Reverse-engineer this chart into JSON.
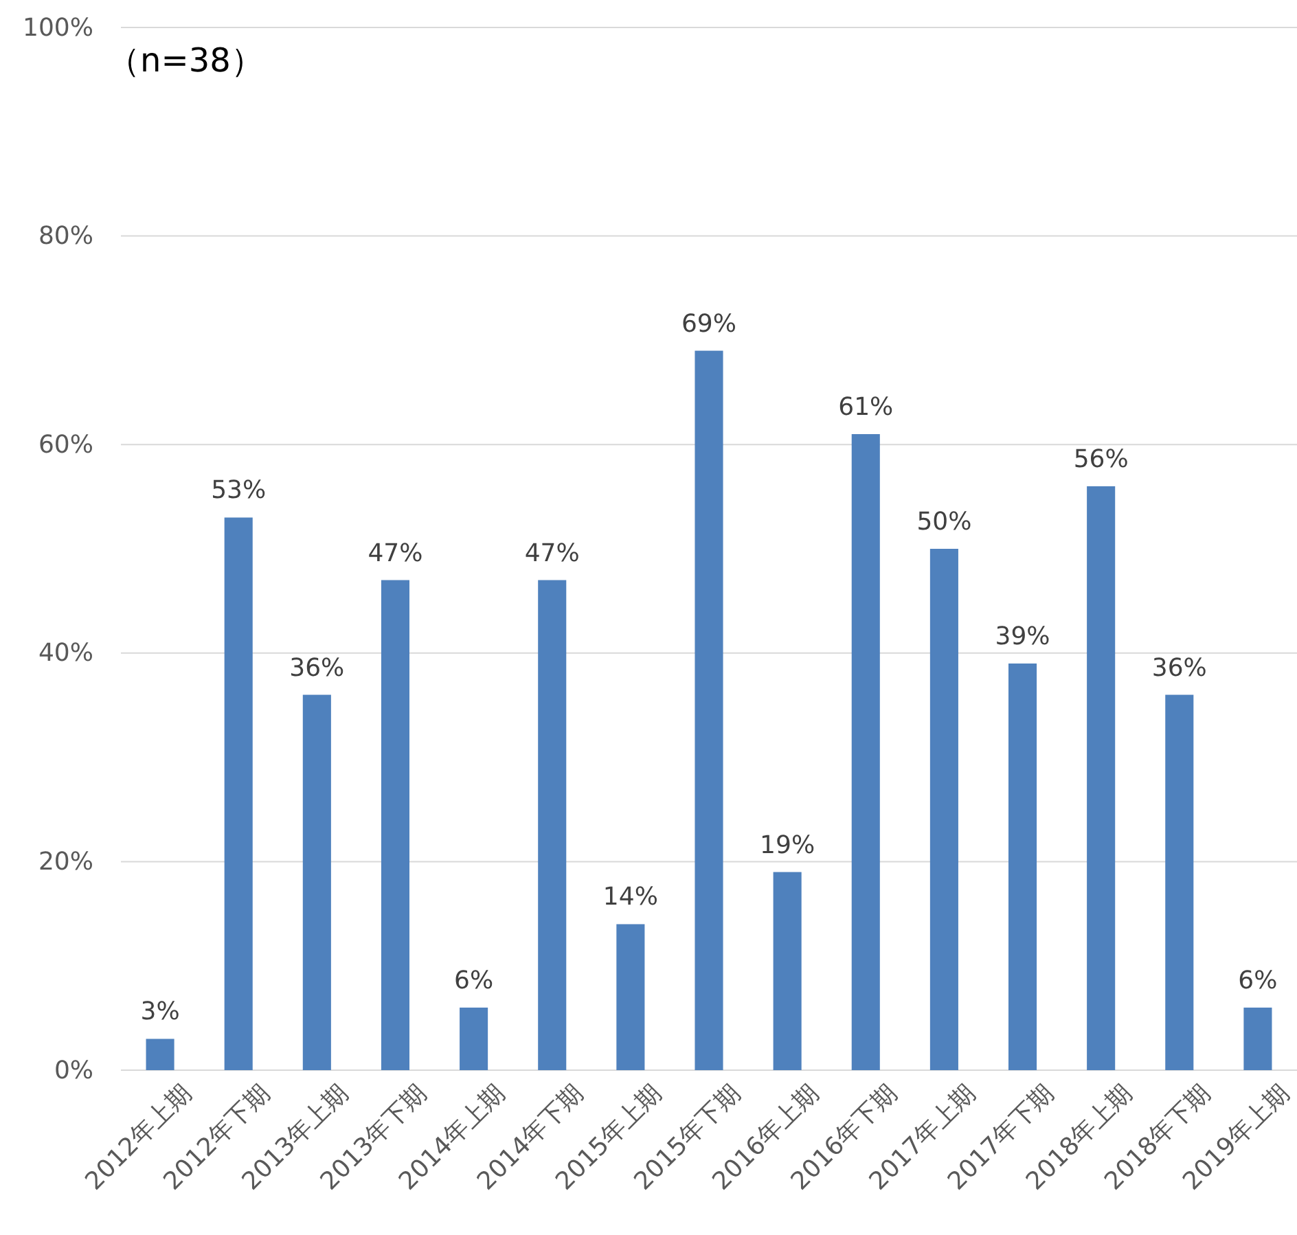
{
  "chart_data": {
    "type": "bar",
    "categories": [
      "2012年上期",
      "2012年下期",
      "2013年上期",
      "2013年下期",
      "2014年上期",
      "2014年下期",
      "2015年上期",
      "2015年下期",
      "2016年上期",
      "2016年下期",
      "2017年上期",
      "2017年下期",
      "2018年上期",
      "2018年下期",
      "2019年上期"
    ],
    "values": [
      3,
      53,
      36,
      47,
      6,
      47,
      14,
      69,
      19,
      61,
      50,
      39,
      56,
      36,
      6
    ],
    "color": "#4f81bd",
    "ylim": [
      0,
      100
    ],
    "yticks": [
      {
        "value": 0,
        "label": "0%"
      },
      {
        "value": 20,
        "label": "20%"
      },
      {
        "value": 40,
        "label": "40%"
      },
      {
        "value": 60,
        "label": "60%"
      },
      {
        "value": 80,
        "label": "80%"
      },
      {
        "value": 100,
        "label": "100%"
      }
    ],
    "grid": "y",
    "value_labels": [
      "3%",
      "53%",
      "36%",
      "47%",
      "6%",
      "47%",
      "14%",
      "69%",
      "19%",
      "61%",
      "50%",
      "39%",
      "56%",
      "36%",
      "6%"
    ],
    "annotations": [
      "（n=38）"
    ]
  }
}
